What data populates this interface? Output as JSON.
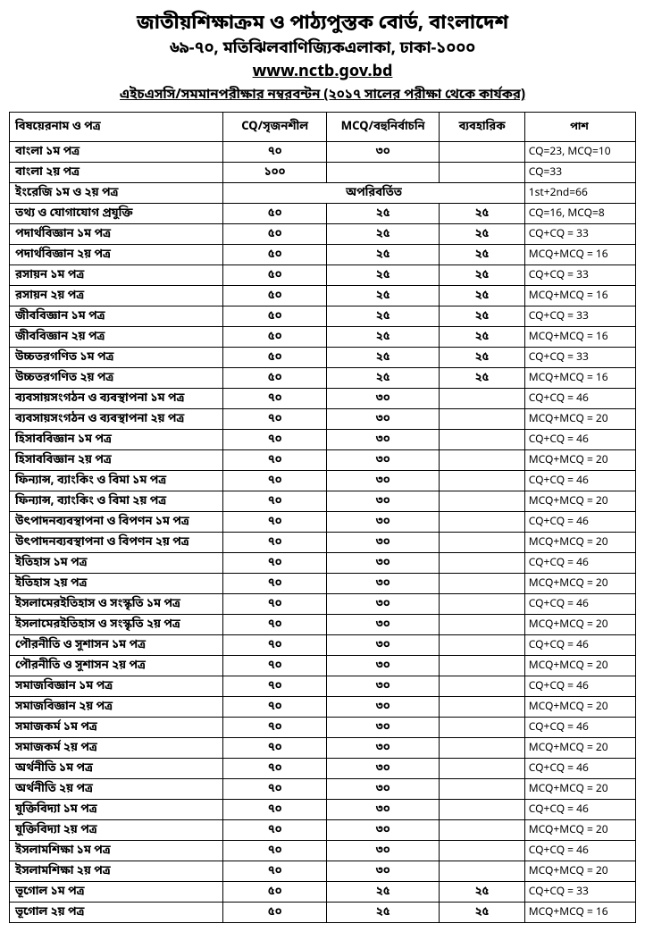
{
  "header": {
    "title": "জাতীয়শিক্ষাক্রম ও পাঠ্যপুস্তক বোর্ড, বাংলাদেশ",
    "address": "৬৯-৭০, মতিঝিলবাণিজ্যিকএলাকা, ঢাকা-১০০০",
    "url": "www.nctb.gov.bd",
    "notice": "এইচএসসি/সমমানপরীক্ষার নম্বরবন্টন (২০১৭ সালের পরীক্ষা থেকে কার্যকর)"
  },
  "columns": {
    "subject": "বিষয়েরনাম ও পত্র",
    "cq": "CQ/সৃজনশীল",
    "mcq": "MCQ/বহুনির্বাচনি",
    "practical": "ব্যবহারিক",
    "pass": "পাশ"
  },
  "unchanged": "অপরিবর্তিত",
  "rows": [
    {
      "subject": "বাংলা ১ম পত্র",
      "cq": "৭০",
      "mcq": "৩০",
      "prac": "",
      "pass": "CQ=23, MCQ=10"
    },
    {
      "subject": "বাংলা ২য় পত্র",
      "cq": "১০০",
      "mcq": "",
      "prac": "",
      "pass": "CQ=33",
      "span100": true
    },
    {
      "subject": "ইংরেজি ১ম ও ২য় পত্র",
      "eng": true,
      "pass": "1st+2nd=66"
    },
    {
      "subject": "তথ্য ও যোগাযোগ প্রযুক্তি",
      "cq": "৫০",
      "mcq": "২৫",
      "prac": "২৫",
      "pass": "CQ=16, MCQ=8"
    },
    {
      "subject": "পদার্থবিজ্ঞান ১ম পত্র",
      "cq": "৫০",
      "mcq": "২৫",
      "prac": "২৫",
      "pass": "CQ+CQ = 33"
    },
    {
      "subject": "পদার্থবিজ্ঞান ২য় পত্র",
      "cq": "৫০",
      "mcq": "২৫",
      "prac": "২৫",
      "pass": "MCQ+MCQ = 16"
    },
    {
      "subject": "রসায়ন ১ম পত্র",
      "cq": "৫০",
      "mcq": "২৫",
      "prac": "২৫",
      "pass": "CQ+CQ = 33"
    },
    {
      "subject": "রসায়ন ২য় পত্র",
      "cq": "৫০",
      "mcq": "২৫",
      "prac": "২৫",
      "pass": "MCQ+MCQ = 16"
    },
    {
      "subject": "জীববিজ্ঞান ১ম পত্র",
      "cq": "৫০",
      "mcq": "২৫",
      "prac": "২৫",
      "pass": "CQ+CQ = 33"
    },
    {
      "subject": "জীববিজ্ঞান ২য় পত্র",
      "cq": "৫০",
      "mcq": "২৫",
      "prac": "২৫",
      "pass": "MCQ+MCQ = 16"
    },
    {
      "subject": "উচ্চতরগণিত ১ম পত্র",
      "cq": "৫০",
      "mcq": "২৫",
      "prac": "২৫",
      "pass": "CQ+CQ = 33"
    },
    {
      "subject": "উচ্চতরগণিত ২য় পত্র",
      "cq": "৫০",
      "mcq": "২৫",
      "prac": "২৫",
      "pass": "MCQ+MCQ = 16"
    },
    {
      "subject": "ব্যবসায়সংগঠন ও ব্যবস্থাপনা ১ম পত্র",
      "cq": "৭০",
      "mcq": "৩০",
      "prac": "",
      "pass": "CQ+CQ =  46"
    },
    {
      "subject": "ব্যবসায়সংগঠন ও ব্যবস্থাপনা ২য় পত্র",
      "cq": "৭০",
      "mcq": "৩০",
      "prac": "",
      "pass": "MCQ+MCQ = 20"
    },
    {
      "subject": "হিসাববিজ্ঞান ১ম পত্র",
      "cq": "৭০",
      "mcq": "৩০",
      "prac": "",
      "pass": "CQ+CQ =  46"
    },
    {
      "subject": "হিসাববিজ্ঞান ২য় পত্র",
      "cq": "৭০",
      "mcq": "৩০",
      "prac": "",
      "pass": "MCQ+MCQ = 20"
    },
    {
      "subject": "ফিন্যান্স, ব্যাংকিং ও বিমা ১ম পত্র",
      "cq": "৭০",
      "mcq": "৩০",
      "prac": "",
      "pass": "CQ+CQ =  46"
    },
    {
      "subject": "ফিন্যান্স, ব্যাংকিং ও বিমা ২য় পত্র",
      "cq": "৭০",
      "mcq": "৩০",
      "prac": "",
      "pass": "MCQ+MCQ = 20"
    },
    {
      "subject": "উৎপাদনব্যবস্থাপনা ও বিপণন ১ম পত্র",
      "cq": "৭০",
      "mcq": "৩০",
      "prac": "",
      "pass": "CQ+CQ =  46"
    },
    {
      "subject": "উৎপাদনব্যবস্থাপনা ও বিপণন ২য় পত্র",
      "cq": "৭০",
      "mcq": "৩০",
      "prac": "",
      "pass": "MCQ+MCQ = 20"
    },
    {
      "subject": "ইতিহাস ১ম পত্র",
      "cq": "৭০",
      "mcq": "৩০",
      "prac": "",
      "pass": "CQ+CQ =  46"
    },
    {
      "subject": "ইতিহাস ২য় পত্র",
      "cq": "৭০",
      "mcq": "৩০",
      "prac": "",
      "pass": "MCQ+MCQ = 20"
    },
    {
      "subject": "ইসলামেরইতিহাস ও সংস্কৃতি ১ম পত্র",
      "cq": "৭০",
      "mcq": "৩০",
      "prac": "",
      "pass": "CQ+CQ =  46"
    },
    {
      "subject": "ইসলামেরইতিহাস ও সংস্কৃতি ২য় পত্র",
      "cq": "৭০",
      "mcq": "৩০",
      "prac": "",
      "pass": "MCQ+MCQ = 20"
    },
    {
      "subject": "পৌরনীতি ও সুশাসন ১ম পত্র",
      "cq": "৭০",
      "mcq": "৩০",
      "prac": "",
      "pass": "CQ+CQ =  46"
    },
    {
      "subject": "পৌরনীতি ও সুশাসন ২য় পত্র",
      "cq": "৭০",
      "mcq": "৩০",
      "prac": "",
      "pass": "MCQ+MCQ = 20"
    },
    {
      "subject": "সমাজবিজ্ঞান ১ম পত্র",
      "cq": "৭০",
      "mcq": "৩০",
      "prac": "",
      "pass": "CQ+CQ =  46"
    },
    {
      "subject": "সমাজবিজ্ঞান ২য় পত্র",
      "cq": "৭০",
      "mcq": "৩০",
      "prac": "",
      "pass": "MCQ+MCQ = 20"
    },
    {
      "subject": "সমাজকর্ম ১ম পত্র",
      "cq": "৭০",
      "mcq": "৩০",
      "prac": "",
      "pass": "CQ+CQ =  46"
    },
    {
      "subject": "সমাজকর্ম ২য় পত্র",
      "cq": "৭০",
      "mcq": "৩০",
      "prac": "",
      "pass": "MCQ+MCQ = 20"
    },
    {
      "subject": "অর্থনীতি ১ম পত্র",
      "cq": "৭০",
      "mcq": "৩০",
      "prac": "",
      "pass": "CQ+CQ =  46"
    },
    {
      "subject": "অর্থনীতি ২য় পত্র",
      "cq": "৭০",
      "mcq": "৩০",
      "prac": "",
      "pass": "MCQ+MCQ = 20"
    },
    {
      "subject": "যুক্তিবিদ্যা ১ম পত্র",
      "cq": "৭০",
      "mcq": "৩০",
      "prac": "",
      "pass": "CQ+CQ =  46"
    },
    {
      "subject": "যুক্তিবিদ্যা ২য় পত্র",
      "cq": "৭০",
      "mcq": "৩০",
      "prac": "",
      "pass": "MCQ+MCQ = 20"
    },
    {
      "subject": "ইসলামশিক্ষা ১ম পত্র",
      "cq": "৭০",
      "mcq": "৩০",
      "prac": "",
      "pass": "CQ+CQ =  46"
    },
    {
      "subject": "ইসলামশিক্ষা ২য় পত্র",
      "cq": "৭০",
      "mcq": "৩০",
      "prac": "",
      "pass": "MCQ+MCQ = 20"
    },
    {
      "subject": "   ভূগোল  ১ম পত্র",
      "cq": "৫০",
      "mcq": "২৫",
      "prac": "২৫",
      "pass": "CQ+CQ = 33"
    },
    {
      "subject": "   ভূগোল  ২য় পত্র",
      "cq": "৫০",
      "mcq": "২৫",
      "prac": "২৫",
      "pass": "MCQ+MCQ = 16"
    }
  ]
}
